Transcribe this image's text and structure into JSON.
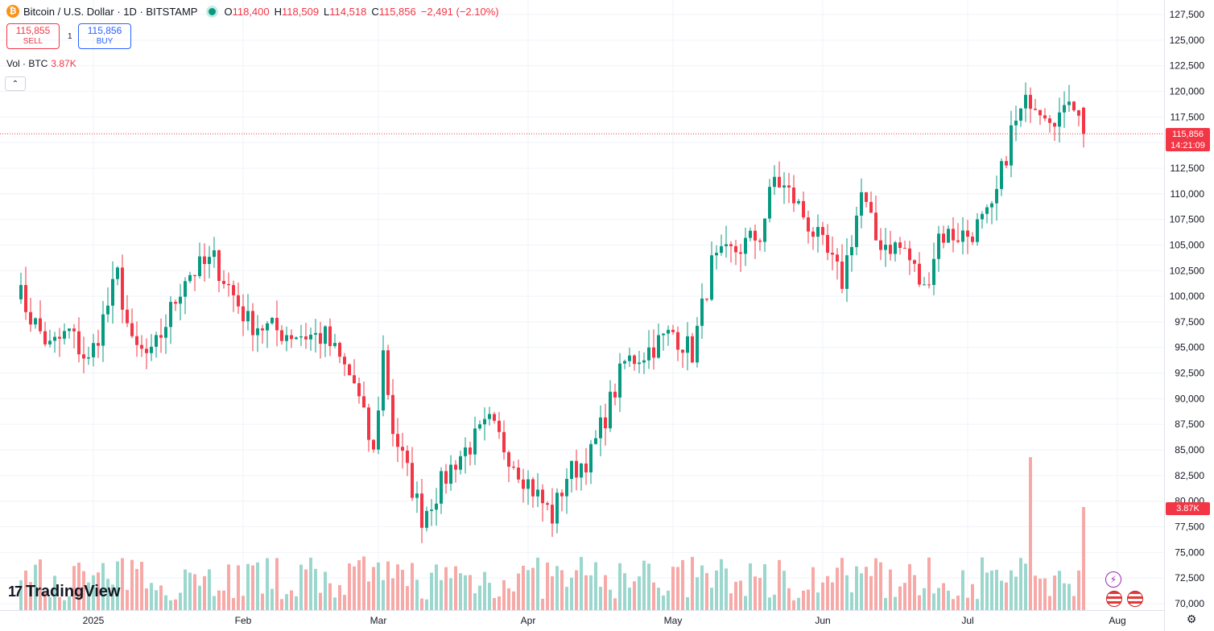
{
  "header": {
    "coin_icon_glyph": "₿",
    "title": "Bitcoin / U.S. Dollar · 1D · BITSTAMP",
    "ohlc": {
      "open_key": "O",
      "open": "118,400",
      "high_key": "H",
      "high": "118,509",
      "low_key": "L",
      "low": "114,518",
      "close_key": "C",
      "close": "115,856",
      "change": "−2,491 (−2.10%)"
    }
  },
  "trade": {
    "sell_price": "115,855",
    "sell_label": "SELL",
    "spread": "1",
    "buy_price": "115,856",
    "buy_label": "BUY"
  },
  "volume_legend": {
    "label": "Vol · BTC",
    "value": "3.87K"
  },
  "collapse_glyph": "⌃",
  "logo": {
    "mark": "17",
    "text": "TradingView"
  },
  "price_axis": {
    "ticks": [
      "127,500",
      "125,000",
      "122,500",
      "120,000",
      "117,500",
      "115,856",
      "112,500",
      "110,000",
      "107,500",
      "105,000",
      "102,500",
      "100,000",
      "97,500",
      "95,000",
      "92,500",
      "90,000",
      "87,500",
      "85,000",
      "82,500",
      "80,000",
      "77,500",
      "75,000",
      "72,500",
      "70,000"
    ],
    "current_price_label": "115,856",
    "countdown": "14:21:09",
    "volume_label": "3.87K"
  },
  "time_axis": {
    "labels": [
      "2025",
      "Feb",
      "Mar",
      "Apr",
      "May",
      "Jun",
      "Jul",
      "Aug"
    ]
  },
  "settings_glyph": "⚙",
  "colors": {
    "up": "#089981",
    "down": "#f23645",
    "up_volume": "#9cd7ce",
    "down_volume": "#f7a9a7",
    "grid": "#f0f3fa",
    "price_line": "#f23645"
  },
  "chart_data": {
    "type": "candlestick",
    "title": "Bitcoin / U.S. Dollar · 1D · BITSTAMP",
    "ylabel": "",
    "ylim": [
      70000,
      127500
    ],
    "x_labels": [
      "2025",
      "Feb",
      "Mar",
      "Apr",
      "May",
      "Jun",
      "Jul",
      "Aug"
    ],
    "grid": true,
    "series": [
      {
        "name": "BTC/USD",
        "kind": "ohlc",
        "anchor_closes": [
          {
            "date": "2024-12-16",
            "close": 101000
          },
          {
            "date": "2024-12-19",
            "close": 98000
          },
          {
            "date": "2024-12-23",
            "close": 95000
          },
          {
            "date": "2024-12-27",
            "close": 96500
          },
          {
            "date": "2024-12-31",
            "close": 93500
          },
          {
            "date": "2025-01-06",
            "close": 102000
          },
          {
            "date": "2025-01-09",
            "close": 95000
          },
          {
            "date": "2025-01-13",
            "close": 94000
          },
          {
            "date": "2025-01-20",
            "close": 102000
          },
          {
            "date": "2025-01-26",
            "close": 103500
          },
          {
            "date": "2025-02-02",
            "close": 97500
          },
          {
            "date": "2025-02-09",
            "close": 96500
          },
          {
            "date": "2025-02-18",
            "close": 96000
          },
          {
            "date": "2025-02-24",
            "close": 91500
          },
          {
            "date": "2025-02-28",
            "close": 84500
          },
          {
            "date": "2025-03-02",
            "close": 94500
          },
          {
            "date": "2025-03-04",
            "close": 87000
          },
          {
            "date": "2025-03-10",
            "close": 78500
          },
          {
            "date": "2025-03-17",
            "close": 84000
          },
          {
            "date": "2025-03-24",
            "close": 87500
          },
          {
            "date": "2025-03-31",
            "close": 82500
          },
          {
            "date": "2025-04-06",
            "close": 78500
          },
          {
            "date": "2025-04-09",
            "close": 82500
          },
          {
            "date": "2025-04-14",
            "close": 84500
          },
          {
            "date": "2025-04-21",
            "close": 93500
          },
          {
            "date": "2025-04-25",
            "close": 94500
          },
          {
            "date": "2025-05-01",
            "close": 96500
          },
          {
            "date": "2025-05-05",
            "close": 94500
          },
          {
            "date": "2025-05-09",
            "close": 103000
          },
          {
            "date": "2025-05-19",
            "close": 106000
          },
          {
            "date": "2025-05-22",
            "close": 111500
          },
          {
            "date": "2025-05-26",
            "close": 109500
          },
          {
            "date": "2025-06-05",
            "close": 101500
          },
          {
            "date": "2025-06-09",
            "close": 110000
          },
          {
            "date": "2025-06-12",
            "close": 105500
          },
          {
            "date": "2025-06-18",
            "close": 104500
          },
          {
            "date": "2025-06-22",
            "close": 100500
          },
          {
            "date": "2025-06-25",
            "close": 106000
          },
          {
            "date": "2025-07-01",
            "close": 106000
          },
          {
            "date": "2025-07-06",
            "close": 108000
          },
          {
            "date": "2025-07-10",
            "close": 116000
          },
          {
            "date": "2025-07-14",
            "close": 119500
          },
          {
            "date": "2025-07-18",
            "close": 118000
          },
          {
            "date": "2025-07-21",
            "close": 117500
          },
          {
            "date": "2025-07-22",
            "close": 119800
          },
          {
            "date": "2025-07-24",
            "close": 118400
          },
          {
            "date": "2025-07-25",
            "close": 115856
          }
        ]
      },
      {
        "name": "Vol · BTC",
        "kind": "volume",
        "last": "3.87K",
        "spike_dates": [
          "2025-07-14"
        ]
      }
    ],
    "last_bar": {
      "open": 118400,
      "high": 118509,
      "low": 114518,
      "close": 115856
    }
  }
}
